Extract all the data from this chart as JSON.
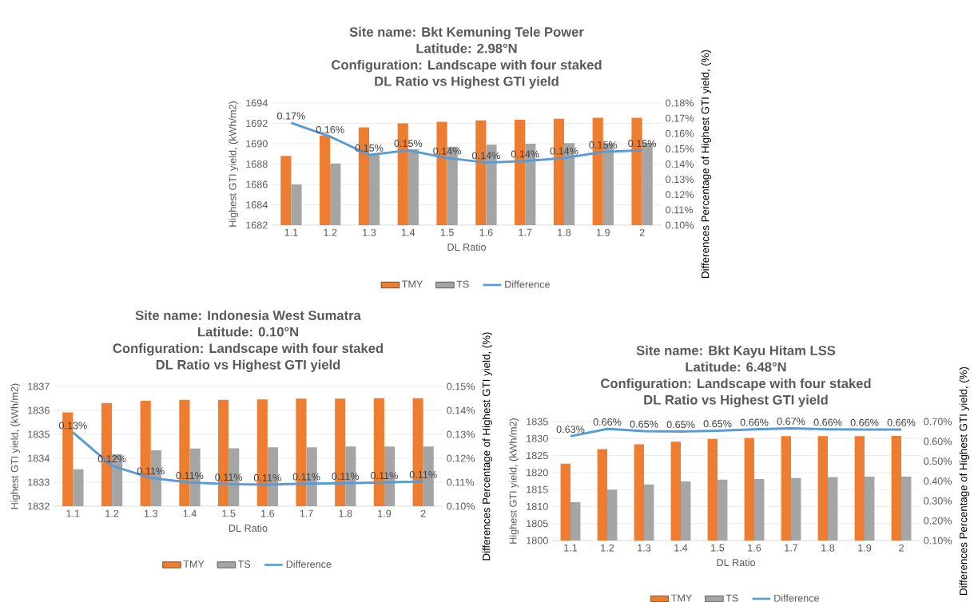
{
  "chart_data": [
    {
      "type": "bar",
      "title": "Site name: Bkt Kemuning Tele Power",
      "subtitle": "Latitude: 2.98°N",
      "annotations": [
        "Configuration: Landscape with four staked",
        "DL Ratio vs Highest GTI yield"
      ],
      "xlabel": "DL Ratio",
      "ylabel": "Highest GTI yield, (kWh/m2)",
      "y2label": "Differences Percentage of Highest GTI yield, (%)",
      "categories": [
        "1.1",
        "1.2",
        "1.3",
        "1.4",
        "1.5",
        "1.6",
        "1.7",
        "1.8",
        "1.9",
        "2"
      ],
      "series": [
        {
          "name": "TMY",
          "color": "#ed7d31",
          "values": [
            1688.8,
            1690.8,
            1691.6,
            1692.0,
            1692.15,
            1692.3,
            1692.35,
            1692.45,
            1692.55,
            1692.55
          ]
        },
        {
          "name": "TS",
          "color": "#a5a5a5",
          "values": [
            1686.0,
            1688.05,
            1689.0,
            1689.45,
            1689.7,
            1689.9,
            1690.0,
            1690.05,
            1690.05,
            1690.05
          ]
        },
        {
          "name": "Difference",
          "type": "line",
          "axis": "y2",
          "color": "#5b9bd5",
          "values": [
            0.167,
            0.158,
            0.146,
            0.149,
            0.144,
            0.141,
            0.142,
            0.144,
            0.148,
            0.149
          ],
          "value_labels": [
            "0.17%",
            "0.16%",
            "0.15%",
            "0.15%",
            "0.14%",
            "0.14%",
            "0.14%",
            "0.14%",
            "0.15%",
            "0.15%"
          ]
        }
      ],
      "ylim": [
        1682,
        1694
      ],
      "yticks": [
        1682,
        1684,
        1686,
        1688,
        1690,
        1692,
        1694
      ],
      "y2lim": [
        0.1,
        0.18
      ],
      "y2ticks": [
        {
          "value": 0.1,
          "label": "0.10%"
        },
        {
          "value": 0.11,
          "label": "0.11%"
        },
        {
          "value": 0.12,
          "label": "0.12%"
        },
        {
          "value": 0.13,
          "label": "0.13%"
        },
        {
          "value": 0.14,
          "label": "0.14%"
        },
        {
          "value": 0.15,
          "label": "0.15%"
        },
        {
          "value": 0.16,
          "label": "0.16%"
        },
        {
          "value": 0.17,
          "label": "0.17%"
        },
        {
          "value": 0.18,
          "label": "0.18%"
        }
      ],
      "grid": "y",
      "legend": "bottom",
      "marker": "none"
    },
    {
      "type": "bar",
      "title": "Site name: Indonesia West Sumatra",
      "subtitle": "Latitude: 0.10°N",
      "annotations": [
        "Configuration: Landscape with four staked",
        "DL Ratio vs Highest GTI yield"
      ],
      "xlabel": "DL Ratio",
      "ylabel": "Highest GTI yield, (kWh/m2)",
      "y2label": "Differences Percentage of Highest GTI yield, (%)",
      "categories": [
        "1.1",
        "1.2",
        "1.3",
        "1.4",
        "1.5",
        "1.6",
        "1.7",
        "1.8",
        "1.9",
        "2"
      ],
      "series": [
        {
          "name": "TMY",
          "color": "#ed7d31",
          "values": [
            1835.92,
            1836.31,
            1836.4,
            1836.44,
            1836.44,
            1836.46,
            1836.49,
            1836.49,
            1836.51,
            1836.51
          ]
        },
        {
          "name": "TS",
          "color": "#a5a5a5",
          "values": [
            1833.54,
            1834.17,
            1834.33,
            1834.41,
            1834.42,
            1834.46,
            1834.46,
            1834.49,
            1834.49,
            1834.49
          ]
        },
        {
          "name": "Difference",
          "type": "line",
          "axis": "y2",
          "color": "#5b9bd5",
          "values": [
            0.1308,
            0.1169,
            0.1118,
            0.1099,
            0.1092,
            0.109,
            0.1094,
            0.1096,
            0.1099,
            0.1103
          ],
          "value_labels": [
            "0.13%",
            "0.12%",
            "0.11%",
            "0.11%",
            "0.11%",
            "0.11%",
            "0.11%",
            "0.11%",
            "0.11%",
            "0.11%"
          ]
        }
      ],
      "ylim": [
        1832,
        1837
      ],
      "yticks": [
        1832,
        1833,
        1834,
        1835,
        1836,
        1837
      ],
      "y2lim": [
        0.1,
        0.15
      ],
      "y2ticks": [
        {
          "value": 0.1,
          "label": "0.10%"
        },
        {
          "value": 0.11,
          "label": "0.11%"
        },
        {
          "value": 0.12,
          "label": "0.12%"
        },
        {
          "value": 0.13,
          "label": "0.13%"
        },
        {
          "value": 0.14,
          "label": "0.14%"
        },
        {
          "value": 0.15,
          "label": "0.15%"
        }
      ],
      "grid": "y",
      "legend": "bottom",
      "marker": "none"
    },
    {
      "type": "bar",
      "title": "Site name: Bkt Kayu Hitam LSS",
      "subtitle": "Latitude: 6.48°N",
      "annotations": [
        "Configuration: Landscape with four staked",
        "DL Ratio vs Highest GTI yield"
      ],
      "xlabel": "DL Ratio",
      "ylabel": "Highest GTI yield, (kWh/m2)",
      "y2label": "Differences Percentage of Highest GTI yield, (%)",
      "categories": [
        "1.1",
        "1.2",
        "1.3",
        "1.4",
        "1.5",
        "1.6",
        "1.7",
        "1.8",
        "1.9",
        "2"
      ],
      "series": [
        {
          "name": "TMY",
          "color": "#ed7d31",
          "values": [
            1822.6,
            1826.9,
            1828.3,
            1829.1,
            1829.9,
            1830.2,
            1830.7,
            1830.7,
            1830.7,
            1830.8
          ]
        },
        {
          "name": "TS",
          "color": "#a5a5a5",
          "values": [
            1811.3,
            1815.0,
            1816.5,
            1817.4,
            1817.9,
            1818.1,
            1818.4,
            1818.7,
            1818.8,
            1818.8
          ]
        },
        {
          "name": "Difference",
          "type": "line",
          "axis": "y2",
          "color": "#5b9bd5",
          "values": [
            0.626,
            0.663,
            0.652,
            0.65,
            0.654,
            0.661,
            0.666,
            0.661,
            0.66,
            0.66
          ],
          "value_labels": [
            "0.63%",
            "0.66%",
            "0.65%",
            "0.65%",
            "0.65%",
            "0.66%",
            "0.67%",
            "0.66%",
            "0.66%",
            "0.66%"
          ]
        }
      ],
      "ylim": [
        1800,
        1835
      ],
      "yticks": [
        1800,
        1805,
        1810,
        1815,
        1820,
        1825,
        1830,
        1835
      ],
      "y2lim": [
        0.1,
        0.7
      ],
      "y2ticks": [
        {
          "value": 0.1,
          "label": "0.10%"
        },
        {
          "value": 0.2,
          "label": "0.20%"
        },
        {
          "value": 0.3,
          "label": "0.30%"
        },
        {
          "value": 0.4,
          "label": "0.40%"
        },
        {
          "value": 0.5,
          "label": "0.50%"
        },
        {
          "value": 0.6,
          "label": "0.60%"
        },
        {
          "value": 0.7,
          "label": "0.70%"
        }
      ],
      "grid": "y",
      "legend": "bottom",
      "marker": "none"
    }
  ]
}
